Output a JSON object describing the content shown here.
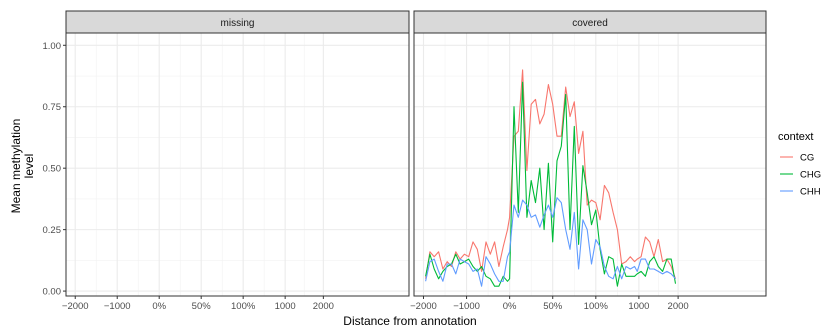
{
  "chart_data": {
    "type": "line",
    "xlabel": "Distance from annotation",
    "ylabel_lines": [
      "Mean methylation",
      "level"
    ],
    "ylim": [
      -0.02,
      1.05
    ],
    "yticks": [
      0.0,
      0.25,
      0.5,
      0.75,
      1.0
    ],
    "ytick_labels": [
      "0.00",
      "0.25",
      "0.50",
      "0.75",
      "1.00"
    ],
    "xlim": [
      -2220,
      5950
    ],
    "xticks": [
      -2000,
      -1000,
      0,
      1000,
      2000,
      3000,
      3910
    ],
    "xtick_labels": [
      "−2000",
      "−1000",
      "0%",
      "50%",
      "100%",
      "1000",
      "2000"
    ],
    "grid": true,
    "legend": {
      "title": "context",
      "position": "right",
      "entries": [
        "CG",
        "CHG",
        "CHH"
      ]
    },
    "colors": {
      "CG": "#F8766D",
      "CHG": "#00BA38",
      "CHH": "#619CFF"
    },
    "panels": [
      {
        "label": "missing",
        "series": []
      },
      {
        "label": "covered",
        "x": [
          -1950,
          -1850,
          -1750,
          -1650,
          -1550,
          -1450,
          -1350,
          -1250,
          -1150,
          -1050,
          -950,
          -850,
          -750,
          -650,
          -550,
          -450,
          -350,
          -250,
          -150,
          -50,
          0,
          100,
          200,
          300,
          400,
          500,
          600,
          700,
          800,
          900,
          1000,
          1100,
          1200,
          1300,
          1400,
          1500,
          1600,
          1700,
          1800,
          1900,
          2000,
          2100,
          2200,
          2300,
          2400,
          2500,
          2600,
          2700,
          2800,
          2900,
          2960,
          3050,
          3150,
          3250,
          3350,
          3450,
          3550,
          3650,
          3750,
          3850
        ],
        "series": [
          {
            "name": "CG",
            "values": [
              0.05,
              0.16,
              0.14,
              0.16,
              0.09,
              0.12,
              0.1,
              0.16,
              0.13,
              0.15,
              0.14,
              0.2,
              0.17,
              0.08,
              0.2,
              0.15,
              0.2,
              0.1,
              0.18,
              0.25,
              0.3,
              0.63,
              0.65,
              0.9,
              0.49,
              0.76,
              0.78,
              0.68,
              0.72,
              0.84,
              0.76,
              0.63,
              0.63,
              0.83,
              0.71,
              0.77,
              0.56,
              0.65,
              0.35,
              0.37,
              0.36,
              0.29,
              0.43,
              0.4,
              0.32,
              0.25,
              0.11,
              0.12,
              0.14,
              0.12,
              0.13,
              0.14,
              0.22,
              0.2,
              0.14,
              0.21,
              0.12,
              0.13,
              0.1,
              0.05
            ]
          },
          {
            "name": "CHG",
            "values": [
              0.06,
              0.15,
              0.09,
              0.05,
              0.08,
              0.1,
              0.11,
              0.15,
              0.11,
              0.12,
              0.13,
              0.1,
              0.08,
              0.1,
              0.06,
              0.05,
              0.02,
              0.02,
              0.06,
              0.04,
              0.05,
              0.75,
              0.32,
              0.85,
              0.3,
              0.45,
              0.36,
              0.5,
              0.25,
              0.52,
              0.2,
              0.53,
              0.59,
              0.8,
              0.25,
              0.67,
              0.19,
              0.51,
              0.4,
              0.27,
              0.33,
              0.17,
              0.07,
              0.14,
              0.13,
              0.02,
              0.11,
              0.06,
              0.06,
              0.06,
              0.07,
              0.08,
              0.06,
              0.12,
              0.14,
              0.1,
              0.08,
              0.13,
              0.13,
              0.03
            ]
          },
          {
            "name": "CHH",
            "values": [
              0.04,
              0.12,
              0.13,
              0.08,
              0.04,
              0.11,
              0.11,
              0.07,
              0.13,
              0.12,
              0.11,
              0.08,
              0.09,
              0.02,
              0.14,
              0.11,
              0.07,
              0.04,
              0.04,
              0.14,
              0.16,
              0.35,
              0.3,
              0.37,
              0.35,
              0.3,
              0.31,
              0.26,
              0.31,
              0.35,
              0.3,
              0.38,
              0.36,
              0.25,
              0.17,
              0.32,
              0.09,
              0.29,
              0.25,
              0.11,
              0.21,
              0.18,
              0.1,
              0.06,
              0.05,
              0.1,
              0.05,
              0.1,
              0.09,
              0.1,
              0.08,
              0.13,
              0.13,
              0.09,
              0.09,
              0.08,
              0.07,
              0.08,
              0.07,
              0.05
            ]
          }
        ]
      }
    ]
  }
}
